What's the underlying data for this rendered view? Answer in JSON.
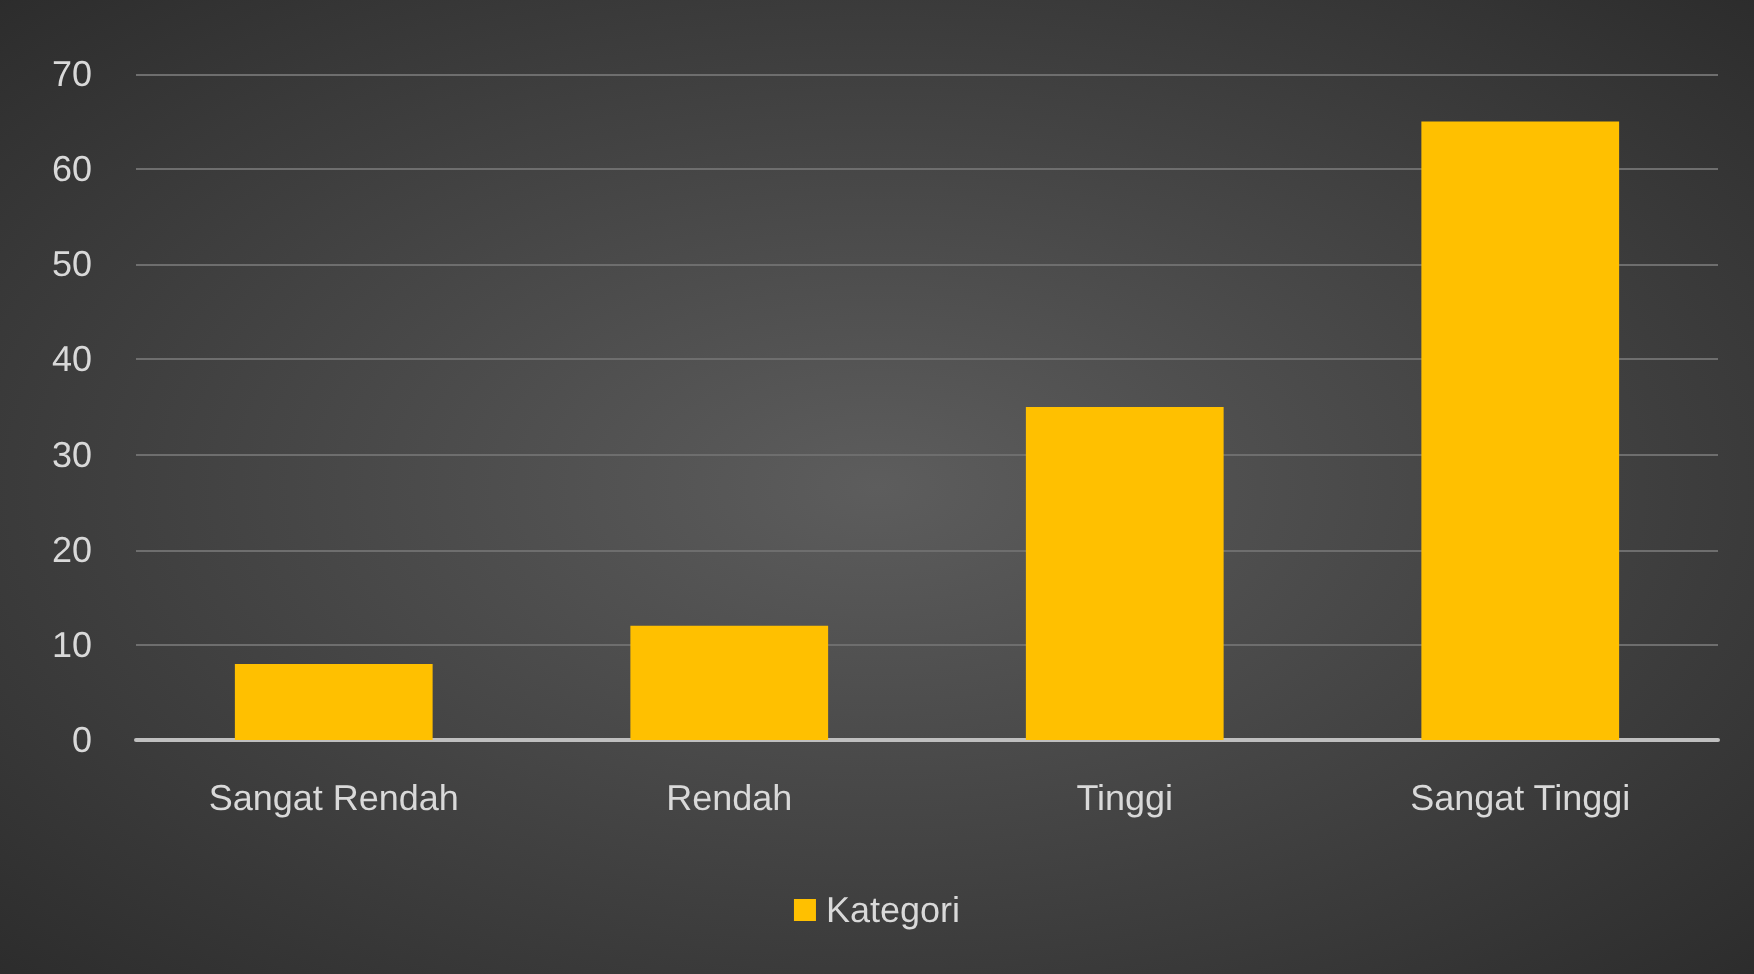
{
  "chart_data": {
    "type": "bar",
    "categories": [
      "Sangat Rendah",
      "Rendah",
      "Tinggi",
      "Sangat Tinggi"
    ],
    "series": [
      {
        "name": "Kategori",
        "color": "#ffc000",
        "values": [
          8,
          12,
          35,
          65
        ]
      }
    ],
    "ylim": [
      0,
      70
    ],
    "yticks": [
      0,
      10,
      20,
      30,
      40,
      50,
      60,
      70
    ],
    "grid": "y",
    "legend": "bottom"
  }
}
